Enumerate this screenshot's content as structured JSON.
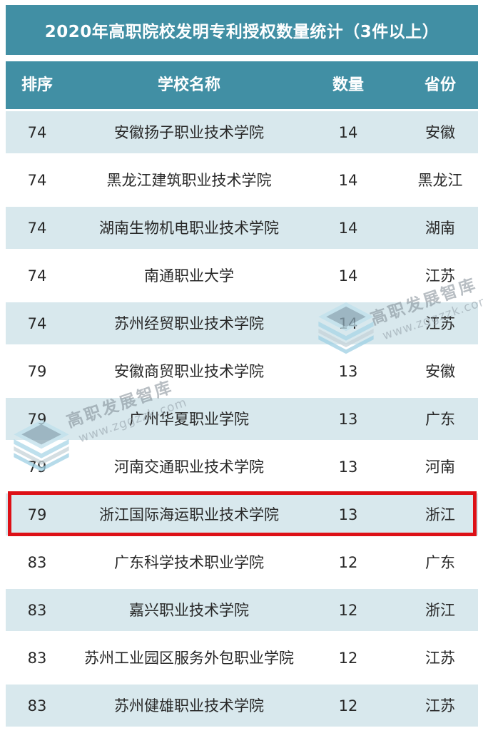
{
  "title": "2020年高职院校发明专利授权数量统计（3件以上）",
  "watermark": {
    "brand": "高职发展智库",
    "site": "www.zggzzk.com"
  },
  "colors": {
    "teal": "#418fa4",
    "light_row": "#d8e8ed",
    "ink": "#282828",
    "highlight_border": "#dd1016"
  },
  "chart_data": {
    "type": "table",
    "title": "2020年高职院校发明专利授权数量统计（3件以上）",
    "columns": [
      "排序",
      "学校名称",
      "数量",
      "省份"
    ],
    "rows": [
      {
        "rank": "74",
        "school": "安徽扬子职业技术学院",
        "count": "14",
        "province": "安徽",
        "highlighted": false
      },
      {
        "rank": "74",
        "school": "黑龙江建筑职业技术学院",
        "count": "14",
        "province": "黑龙江",
        "highlighted": false
      },
      {
        "rank": "74",
        "school": "湖南生物机电职业技术学院",
        "count": "14",
        "province": "湖南",
        "highlighted": false
      },
      {
        "rank": "74",
        "school": "南通职业大学",
        "count": "14",
        "province": "江苏",
        "highlighted": false
      },
      {
        "rank": "74",
        "school": "苏州经贸职业技术学院",
        "count": "14",
        "province": "江苏",
        "highlighted": false
      },
      {
        "rank": "79",
        "school": "安徽商贸职业技术学院",
        "count": "13",
        "province": "安徽",
        "highlighted": false
      },
      {
        "rank": "79",
        "school": "广州华夏职业学院",
        "count": "13",
        "province": "广东",
        "highlighted": false
      },
      {
        "rank": "79",
        "school": "河南交通职业技术学院",
        "count": "13",
        "province": "河南",
        "highlighted": false
      },
      {
        "rank": "79",
        "school": "浙江国际海运职业技术学院",
        "count": "13",
        "province": "浙江",
        "highlighted": true
      },
      {
        "rank": "83",
        "school": "广东科学技术职业学院",
        "count": "12",
        "province": "广东",
        "highlighted": false
      },
      {
        "rank": "83",
        "school": "嘉兴职业技术学院",
        "count": "12",
        "province": "浙江",
        "highlighted": false
      },
      {
        "rank": "83",
        "school": "苏州工业园区服务外包职业学院",
        "count": "12",
        "province": "江苏",
        "highlighted": false
      },
      {
        "rank": "83",
        "school": "苏州健雄职业技术学院",
        "count": "12",
        "province": "江苏",
        "highlighted": false
      }
    ]
  }
}
